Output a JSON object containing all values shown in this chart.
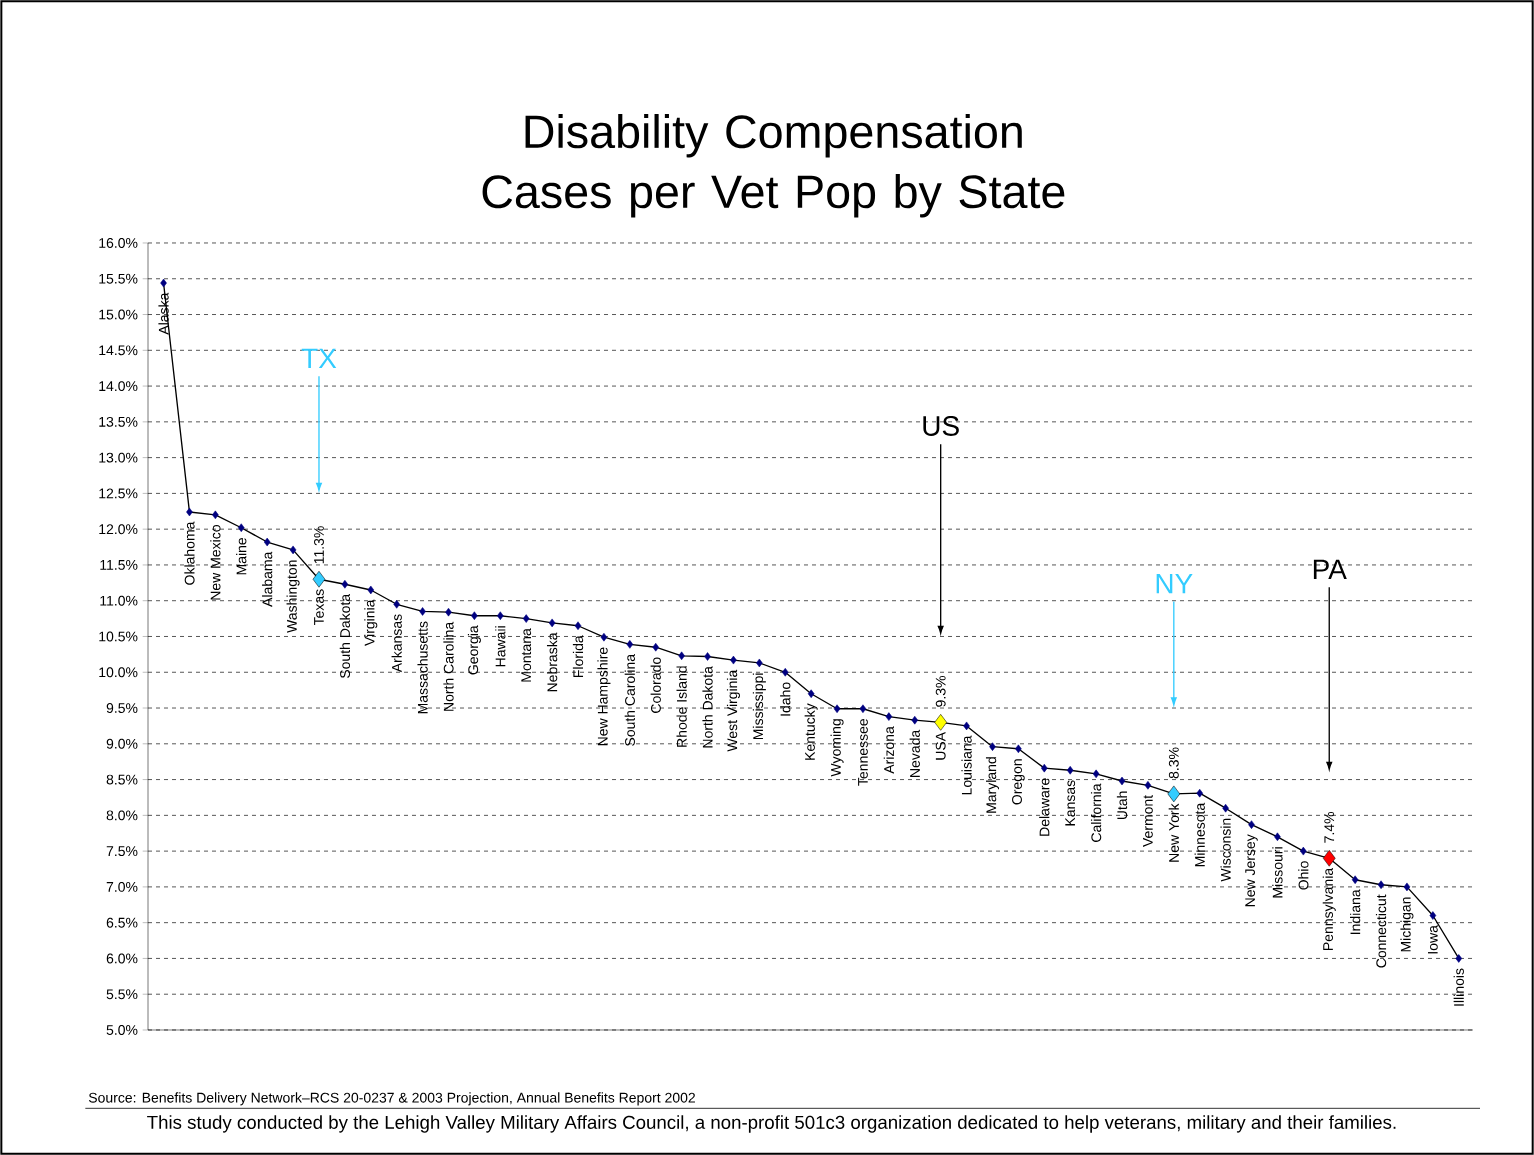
{
  "chart_data": {
    "type": "line",
    "title": "Disability Compensation Cases per Vet Pop by State",
    "categories": [
      "Alaska",
      "Oklahoma",
      "New Mexico",
      "Maine",
      "Alabama",
      "Washington",
      "Texas",
      "South Dakota",
      "Virginia",
      "Arkansas",
      "Massachusetts",
      "North Carolina",
      "Georgia",
      "Hawaii",
      "Montana",
      "Nebraska",
      "Florida",
      "New Hampshire",
      "South Carolina",
      "Colorado",
      "Rhode Island",
      "North Dakota",
      "West Virginia",
      "Mississippi",
      "Idaho",
      "Kentucky",
      "Wyoming",
      "Tennessee",
      "Arizona",
      "Nevada",
      "USA",
      "Louisiana",
      "Maryland",
      "Oregon",
      "Delaware",
      "Kansas",
      "California",
      "Utah",
      "Vermont",
      "New York",
      "Minnesota",
      "Wisconsin",
      "New Jersey",
      "Missouri",
      "Ohio",
      "Pennsylvania",
      "Indiana",
      "Connecticut",
      "Michigan",
      "Iowa",
      "Illinois"
    ],
    "values": [
      15.44,
      12.24,
      12.2,
      12.02,
      11.82,
      11.71,
      11.3,
      11.23,
      11.15,
      10.95,
      10.85,
      10.84,
      10.79,
      10.79,
      10.75,
      10.69,
      10.65,
      10.49,
      10.39,
      10.35,
      10.23,
      10.22,
      10.17,
      10.13,
      10.0,
      9.7,
      9.49,
      9.49,
      9.38,
      9.33,
      9.3,
      9.25,
      8.96,
      8.93,
      8.66,
      8.63,
      8.58,
      8.48,
      8.42,
      8.3,
      8.31,
      8.1,
      7.87,
      7.7,
      7.5,
      7.4,
      7.1,
      7.03,
      7.0,
      6.6,
      6.0
    ],
    "value_labels": [
      null,
      null,
      null,
      null,
      null,
      null,
      "11.3%",
      null,
      null,
      null,
      null,
      null,
      null,
      null,
      null,
      null,
      null,
      null,
      null,
      null,
      null,
      null,
      null,
      null,
      null,
      null,
      null,
      null,
      null,
      null,
      "9.3%",
      null,
      null,
      null,
      null,
      null,
      null,
      null,
      null,
      "8.3%",
      null,
      null,
      null,
      null,
      null,
      "7.4%",
      null,
      null,
      null,
      null,
      null
    ],
    "color": "#000000",
    "colors": [
      "#000080",
      "#000080",
      "#000080",
      "#000080",
      "#000080",
      "#000080",
      "#33ccff",
      "#000080",
      "#000080",
      "#000080",
      "#000080",
      "#000080",
      "#000080",
      "#000080",
      "#000080",
      "#000080",
      "#000080",
      "#000080",
      "#000080",
      "#000080",
      "#000080",
      "#000080",
      "#000080",
      "#000080",
      "#000080",
      "#000080",
      "#000080",
      "#000080",
      "#000080",
      "#000080",
      "#ffff00",
      "#000080",
      "#000080",
      "#000080",
      "#000080",
      "#000080",
      "#000080",
      "#000080",
      "#000080",
      "#33ccff",
      "#000080",
      "#000080",
      "#000080",
      "#000080",
      "#000080",
      "#ff0000",
      "#000080",
      "#000080",
      "#000080",
      "#000080",
      "#000080"
    ],
    "marker": "diamond",
    "line_style": "solid",
    "grid": "y",
    "tick_labels": "y",
    "ylim": [
      5,
      16
    ],
    "yticks": [
      {
        "value": 5,
        "label": "5.0%"
      },
      {
        "value": 5.5,
        "label": "5.5%"
      },
      {
        "value": 6,
        "label": "6.0%"
      },
      {
        "value": 6.5,
        "label": "6.5%"
      },
      {
        "value": 7,
        "label": "7.0%"
      },
      {
        "value": 7.5,
        "label": "7.5%"
      },
      {
        "value": 8,
        "label": "8.0%"
      },
      {
        "value": 8.5,
        "label": "8.5%"
      },
      {
        "value": 9,
        "label": "9.0%"
      },
      {
        "value": 9.5,
        "label": "9.5%"
      },
      {
        "value": 10,
        "label": "10.0%"
      },
      {
        "value": 10.5,
        "label": "10.5%"
      },
      {
        "value": 11,
        "label": "11.0%"
      },
      {
        "value": 11.5,
        "label": "11.5%"
      },
      {
        "value": 12,
        "label": "12.0%"
      },
      {
        "value": 12.5,
        "label": "12.5%"
      },
      {
        "value": 13,
        "label": "13.0%"
      },
      {
        "value": 13.5,
        "label": "13.5%"
      },
      {
        "value": 14,
        "label": "14.0%"
      },
      {
        "value": 14.5,
        "label": "14.5%"
      },
      {
        "value": 15,
        "label": "15.0%"
      },
      {
        "value": 15.5,
        "label": "15.5%"
      },
      {
        "value": 16,
        "label": "16.0%"
      }
    ],
    "annotations": [
      "TX",
      "US",
      "NY",
      "PA",
      "Source:  Benefits Delivery Network–RCS 20-0237 &  2003 Projection, Annual Benefits Report 2002",
      "This study conducted by the Lehigh Valley Military Affairs Council, a non-profit 501c3 organization dedicated to help veterans, military and their families."
    ]
  }
}
